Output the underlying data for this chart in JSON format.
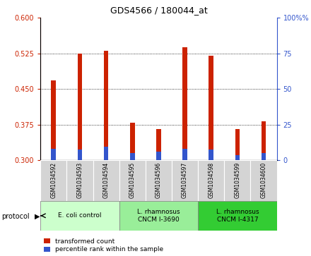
{
  "title": "GDS4566 / 180044_at",
  "samples": [
    "GSM1034592",
    "GSM1034593",
    "GSM1034594",
    "GSM1034595",
    "GSM1034596",
    "GSM1034597",
    "GSM1034598",
    "GSM1034599",
    "GSM1034600"
  ],
  "transformed_count": [
    0.468,
    0.525,
    0.53,
    0.378,
    0.365,
    0.538,
    0.52,
    0.365,
    0.382
  ],
  "percentile_top": [
    0.323,
    0.322,
    0.328,
    0.314,
    0.317,
    0.323,
    0.322,
    0.31,
    0.314
  ],
  "ylim_left": [
    0.3,
    0.6
  ],
  "ylim_right": [
    0,
    100
  ],
  "yticks_left": [
    0.3,
    0.375,
    0.45,
    0.525,
    0.6
  ],
  "yticks_right": [
    0,
    25,
    50,
    75,
    100
  ],
  "bar_color": "#cc2200",
  "percentile_color": "#3355cc",
  "protocol_groups": [
    {
      "label": "E. coli control",
      "samples": [
        0,
        1,
        2
      ],
      "color": "#ccffcc"
    },
    {
      "label": "L. rhamnosus\nCNCM I-3690",
      "samples": [
        3,
        4,
        5
      ],
      "color": "#99ee99"
    },
    {
      "label": "L. rhamnosus\nCNCM I-4317",
      "samples": [
        6,
        7,
        8
      ],
      "color": "#33cc33"
    }
  ],
  "legend_transformed": "transformed count",
  "legend_percentile": "percentile rank within the sample",
  "protocol_label": "protocol",
  "bar_width": 0.18,
  "baseline": 0.3
}
